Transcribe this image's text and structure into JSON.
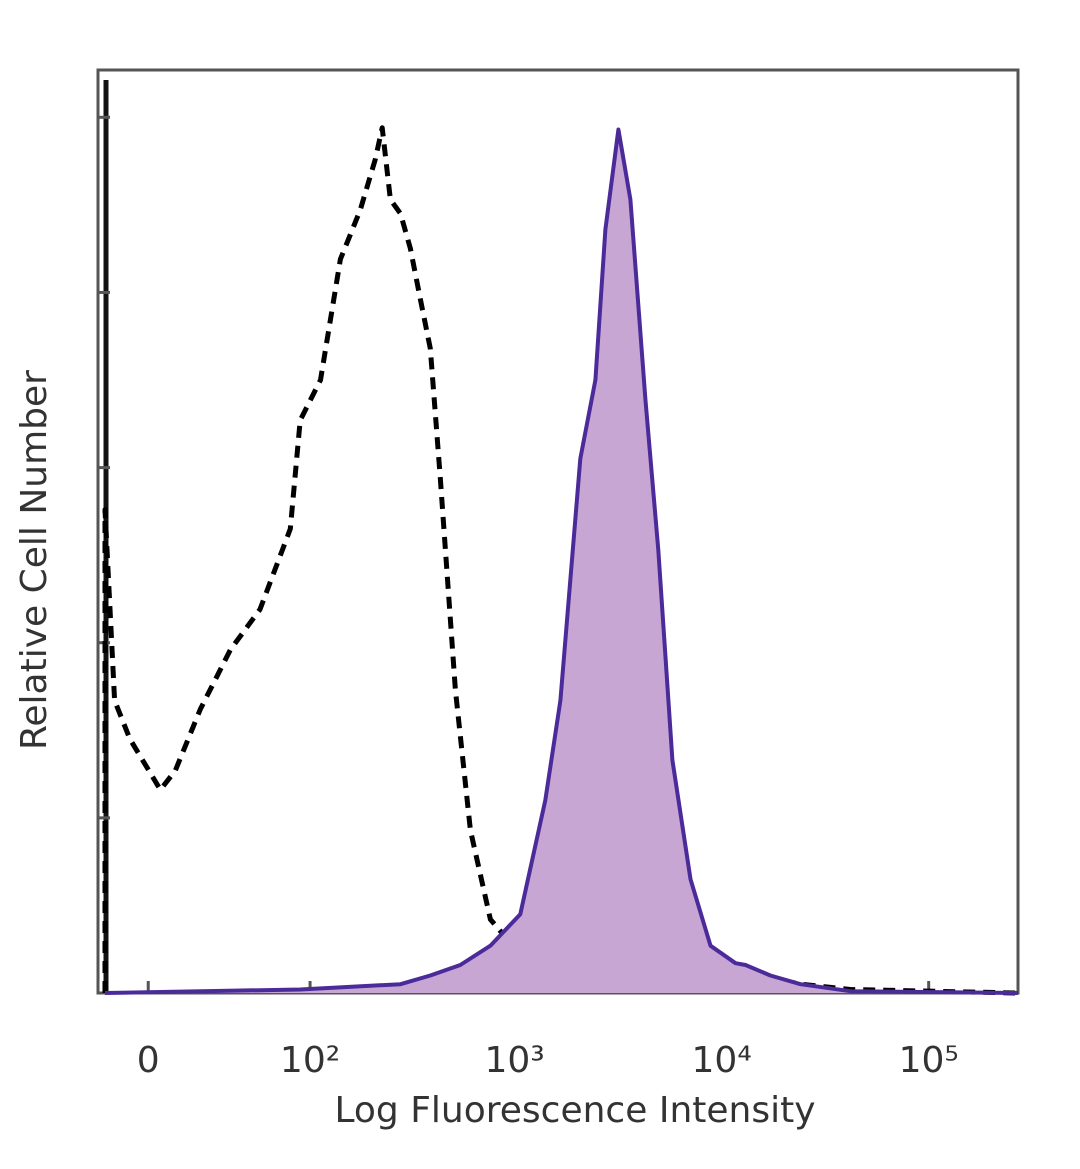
{
  "chart_data": {
    "type": "histogram-overlay",
    "x_title": "Log Fluorescence Intensity",
    "y_title": "Relative Cell Number",
    "xscale": "asinh",
    "xlim": [
      -20,
      270000
    ],
    "xticks": [
      0,
      {
        "value": 100,
        "label": "10²"
      },
      {
        "value": 1000,
        "label": "10³"
      },
      {
        "value": 10000,
        "label": "10⁴"
      },
      {
        "value": 100000,
        "label": "10⁵"
      }
    ],
    "ylim": [
      0,
      5.27
    ],
    "yticks": [
      0,
      1,
      2,
      3,
      4,
      5
    ],
    "series": [
      {
        "color": "#000000",
        "dash": true,
        "fill": null,
        "x": [
          -17,
          -17,
          -13,
          -7,
          4.6,
          10.4,
          20.8,
          35.6,
          54,
          79,
          89,
          113,
          142,
          178,
          211,
          228,
          250,
          280,
          313,
          350,
          391,
          437,
          517,
          611,
          764,
          1065,
          1663,
          3244,
          7893,
          15379,
          24038,
          41888,
          270000
        ],
        "values": [
          0,
          2.76,
          1.67,
          1.45,
          1.16,
          1.27,
          1.62,
          1.96,
          2.19,
          2.65,
          3.27,
          3.5,
          4.19,
          4.47,
          4.76,
          4.94,
          4.53,
          4.45,
          4.25,
          3.96,
          3.68,
          2.94,
          1.73,
          0.93,
          0.42,
          0.22,
          0.14,
          0.1,
          0.05,
          0.1,
          0.05,
          0.02,
          0
        ]
      },
      {
        "color": "#4b2a9a",
        "dash": false,
        "fill": "#c8a6d4",
        "x": [
          -17,
          89,
          280,
          391,
          546,
          764,
          1065,
          1407,
          1663,
          2077,
          2455,
          2744,
          3170,
          3624,
          4284,
          4945,
          5780,
          7069,
          8833,
          11662,
          13039,
          17204,
          24038,
          41888,
          270000
        ],
        "values": [
          0,
          0.02,
          0.05,
          0.1,
          0.16,
          0.27,
          0.45,
          1.1,
          1.67,
          3.05,
          3.5,
          4.36,
          4.93,
          4.53,
          3.39,
          2.53,
          1.33,
          0.65,
          0.27,
          0.17,
          0.16,
          0.1,
          0.05,
          0.01,
          0
        ]
      }
    ]
  }
}
